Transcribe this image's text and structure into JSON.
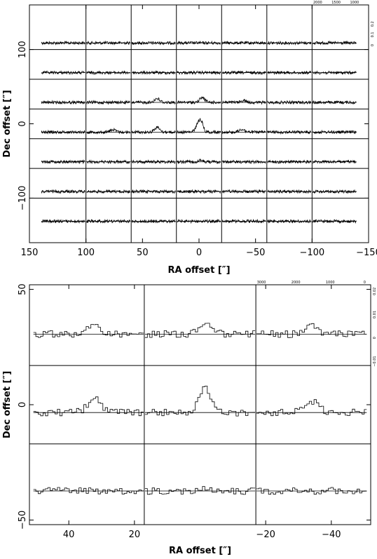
{
  "chart_data": [
    {
      "type": "line",
      "description_kind": "spectral map grid",
      "xlabel": "RA offset [″]",
      "ylabel": "Dec offset [″]",
      "xlim": [
        150,
        -150
      ],
      "ylim": [
        -160,
        160
      ],
      "grid_columns": 7,
      "grid_rows": 7,
      "column_ra_offsets": [
        120,
        80,
        40,
        0,
        -40,
        -80,
        -120
      ],
      "row_dec_offsets": [
        120,
        80,
        40,
        0,
        -40,
        -80,
        -120
      ],
      "x_ticks": [
        150,
        100,
        50,
        0,
        -50,
        -100,
        -150
      ],
      "x_tick_labels": [
        "150",
        "100",
        "50",
        "0",
        "−50",
        "−100",
        "−150"
      ],
      "y_ticks": [
        100,
        0,
        -100
      ],
      "y_tick_labels": [
        "100",
        "0",
        "−100"
      ],
      "inset_velocity_ticks": [
        "2000",
        "1500",
        "1000"
      ],
      "inset_intensity_ticks": [
        "0",
        "0.1",
        "0.2"
      ],
      "peaks": [
        {
          "ra": 40,
          "dec": 40,
          "amp": 0.6,
          "pos": 0.58
        },
        {
          "ra": 0,
          "dec": 40,
          "amp": 0.75,
          "pos": 0.58
        },
        {
          "ra": -40,
          "dec": 40,
          "amp": 0.3,
          "pos": 0.5
        },
        {
          "ra": 80,
          "dec": 0,
          "amp": 0.4,
          "pos": 0.6
        },
        {
          "ra": 40,
          "dec": 0,
          "amp": 0.75,
          "pos": 0.58
        },
        {
          "ra": 0,
          "dec": 0,
          "amp": 1.6,
          "pos": 0.5
        },
        {
          "ra": -40,
          "dec": 0,
          "amp": 0.45,
          "pos": 0.45
        },
        {
          "ra": 0,
          "dec": -40,
          "amp": 0.2,
          "pos": 0.55
        }
      ]
    },
    {
      "type": "line",
      "description_kind": "spectral map grid",
      "xlabel": "RA offset [″]",
      "ylabel": "Dec offset [″]",
      "xlim": [
        52,
        -52
      ],
      "ylim": [
        -52,
        52
      ],
      "grid_columns": 3,
      "grid_rows": 3,
      "column_ra_offsets": [
        34,
        0,
        -34
      ],
      "row_dec_offsets": [
        34,
        0,
        -34
      ],
      "x_ticks": [
        40,
        20,
        -20,
        -40
      ],
      "x_tick_labels": [
        "40",
        "20",
        "−20",
        "−40"
      ],
      "y_ticks": [
        50,
        0,
        -50
      ],
      "y_tick_labels": [
        "50",
        "0",
        "−50"
      ],
      "inset_velocity_ticks": [
        "3000",
        "2000",
        "1000",
        "0"
      ],
      "inset_intensity_ticks": [
        "−0.01",
        "0",
        "0.01",
        "0.02"
      ],
      "peaks": [
        {
          "ra": 34,
          "dec": 34,
          "amp": 0.35,
          "pos": 0.55
        },
        {
          "ra": 0,
          "dec": 34,
          "amp": 0.45,
          "pos": 0.55
        },
        {
          "ra": -34,
          "dec": 34,
          "amp": 0.35,
          "pos": 0.5
        },
        {
          "ra": 34,
          "dec": 0,
          "amp": 0.6,
          "pos": 0.55
        },
        {
          "ra": 0,
          "dec": 0,
          "amp": 1.0,
          "pos": 0.55
        },
        {
          "ra": -34,
          "dec": 0,
          "amp": 0.5,
          "pos": 0.5
        },
        {
          "ra": 0,
          "dec": -34,
          "amp": 0.15,
          "pos": 0.55
        }
      ]
    }
  ]
}
